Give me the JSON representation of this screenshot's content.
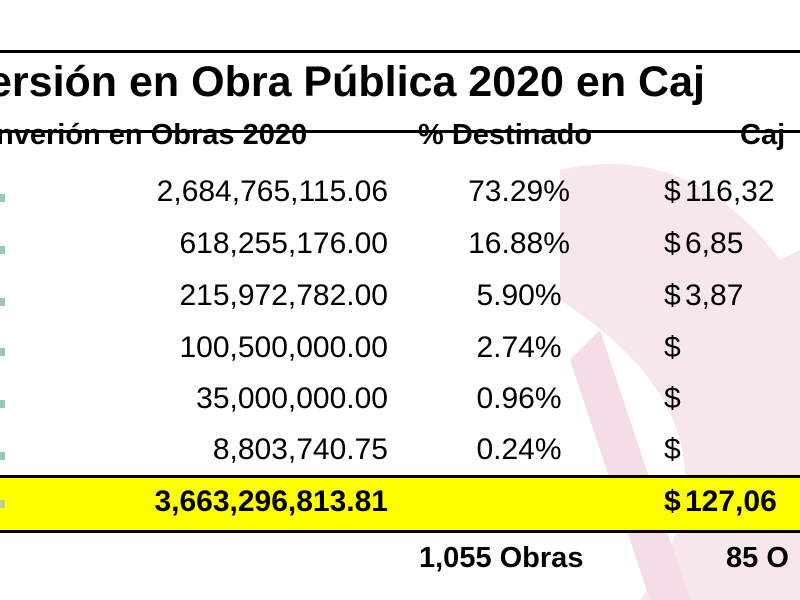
{
  "title": "ersión en Obra Pública 2020 en Caj",
  "headers": [
    "nverión en Obras 2020",
    "% Destinado",
    "Caj"
  ],
  "rows": [
    {
      "amount": "2,684,765,115.06",
      "percent": "73.29%",
      "dollar": "$",
      "cajeme": "116,32"
    },
    {
      "amount": "618,255,176.00",
      "percent": "16.88%",
      "dollar": "$",
      "cajeme": "6,85"
    },
    {
      "amount": "215,972,782.00",
      "percent": "5.90%",
      "dollar": "$",
      "cajeme": "3,87"
    },
    {
      "amount": "100,500,000.00",
      "percent": "2.74%",
      "dollar": "$",
      "cajeme": ""
    },
    {
      "amount": "35,000,000.00",
      "percent": "0.96%",
      "dollar": "$",
      "cajeme": ""
    },
    {
      "amount": "8,803,740.75",
      "percent": "0.24%",
      "dollar": "$",
      "cajeme": ""
    }
  ],
  "total": {
    "amount": "3,663,296,813.81",
    "dollar": "$",
    "cajeme": "127,06"
  },
  "footer": {
    "obras_total": "1,055 Obras",
    "obras_cajeme": "85 O"
  },
  "colors": {
    "total_band": "#ffff00",
    "left_marks": "#99c7b5",
    "watermark": "#f4dde6"
  }
}
